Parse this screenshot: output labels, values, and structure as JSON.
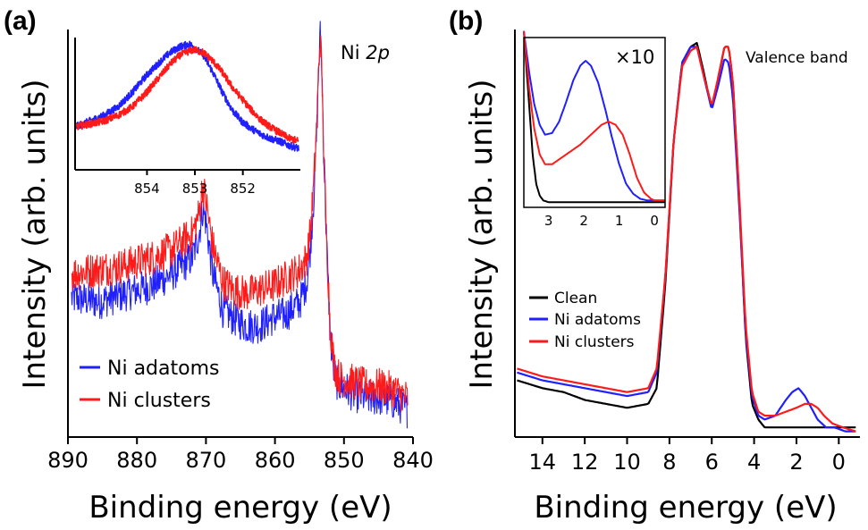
{
  "chart_data": [
    {
      "id": "a",
      "panel_label": "(a)",
      "type": "line",
      "title": "Ni 2p",
      "title_main": "Ni",
      "title_italic": "2p",
      "xlabel": "Binding energy (eV)",
      "ylabel": "Intensity (arb. units)",
      "xlim": [
        890,
        840
      ],
      "xticks": [
        890,
        880,
        870,
        860,
        850,
        840
      ],
      "ylim": [
        0,
        1.0
      ],
      "legend": {
        "position": "bottom-left",
        "entries": [
          "Ni adatoms",
          "Ni clusters"
        ]
      },
      "colors": {
        "Ni adatoms": "#1f1fff",
        "Ni clusters": "#ff1a1a"
      },
      "series": [
        {
          "name": "Ni adatoms",
          "x": [
            890,
            886,
            882,
            878,
            875,
            872,
            871,
            870.5,
            870,
            869,
            867.5,
            866,
            864,
            862,
            860,
            858,
            856,
            855,
            854.5,
            854,
            853.5,
            853.2,
            853,
            852.8,
            852.5,
            852,
            851.5,
            851,
            850.5,
            850,
            848,
            846,
            844,
            842,
            840
          ],
          "y": [
            0.34,
            0.33,
            0.35,
            0.37,
            0.4,
            0.44,
            0.5,
            0.56,
            0.53,
            0.4,
            0.31,
            0.29,
            0.27,
            0.27,
            0.29,
            0.3,
            0.33,
            0.38,
            0.46,
            0.58,
            0.76,
            0.93,
            0.99,
            0.93,
            0.72,
            0.45,
            0.24,
            0.16,
            0.13,
            0.12,
            0.1,
            0.09,
            0.09,
            0.08,
            0.06
          ]
        },
        {
          "name": "Ni clusters",
          "x": [
            890,
            886,
            882,
            878,
            875,
            872,
            871,
            870.5,
            870,
            869,
            867.5,
            866,
            864,
            862,
            860,
            858,
            856,
            855,
            854.5,
            854,
            853.5,
            853.2,
            853,
            852.8,
            852.5,
            852,
            851.5,
            851,
            850.5,
            850,
            848,
            846,
            844,
            842,
            840
          ],
          "y": [
            0.4,
            0.41,
            0.42,
            0.44,
            0.46,
            0.5,
            0.55,
            0.62,
            0.58,
            0.47,
            0.38,
            0.36,
            0.35,
            0.36,
            0.37,
            0.39,
            0.41,
            0.44,
            0.5,
            0.61,
            0.78,
            0.93,
            0.98,
            0.92,
            0.72,
            0.46,
            0.27,
            0.18,
            0.15,
            0.14,
            0.13,
            0.12,
            0.12,
            0.11,
            0.09
          ]
        }
      ],
      "inset": {
        "xlim": [
          855.5,
          850.8
        ],
        "xticks": [
          854,
          853,
          852
        ],
        "ylim": [
          0,
          1.0
        ],
        "series": [
          {
            "name": "Ni adatoms",
            "x": [
              855.5,
              855.2,
              854.9,
              854.6,
              854.3,
              854.0,
              853.7,
              853.5,
              853.3,
              853.1,
              853.0,
              852.8,
              852.6,
              852.4,
              852.2,
              852.0,
              851.8,
              851.6,
              851.4,
              851.2,
              851.0,
              850.8
            ],
            "y": [
              0.3,
              0.34,
              0.38,
              0.44,
              0.54,
              0.66,
              0.76,
              0.82,
              0.86,
              0.88,
              0.86,
              0.8,
              0.68,
              0.54,
              0.42,
              0.34,
              0.29,
              0.25,
              0.22,
              0.2,
              0.17,
              0.15
            ]
          },
          {
            "name": "Ni clusters",
            "x": [
              855.5,
              855.2,
              854.9,
              854.6,
              854.3,
              854.0,
              853.7,
              853.5,
              853.3,
              853.1,
              853.0,
              852.8,
              852.6,
              852.4,
              852.2,
              852.0,
              851.8,
              851.6,
              851.4,
              851.2,
              851.0,
              850.8
            ],
            "y": [
              0.3,
              0.32,
              0.34,
              0.38,
              0.44,
              0.54,
              0.66,
              0.74,
              0.8,
              0.83,
              0.84,
              0.82,
              0.76,
              0.68,
              0.58,
              0.5,
              0.42,
              0.35,
              0.3,
              0.26,
              0.22,
              0.2
            ]
          }
        ]
      }
    },
    {
      "id": "b",
      "panel_label": "(b)",
      "type": "line",
      "title": "Valence band",
      "xlabel": "Binding energy (eV)",
      "ylabel": "Intensity (arb. units)",
      "xlim": [
        15.3,
        -1.0
      ],
      "xticks": [
        14,
        12,
        10,
        8,
        6,
        4,
        2,
        0
      ],
      "ylim": [
        0,
        1.0
      ],
      "legend": {
        "position": "center-left",
        "entries": [
          "Clean",
          "Ni adatoms",
          "Ni clusters"
        ]
      },
      "colors": {
        "Clean": "#000000",
        "Ni adatoms": "#1f1fff",
        "Ni clusters": "#ff1a1a"
      },
      "series": [
        {
          "name": "Clean",
          "x": [
            15.2,
            14,
            13,
            12,
            11,
            10,
            9,
            8.6,
            8.2,
            7.8,
            7.4,
            7.0,
            6.7,
            6.4,
            6.0,
            5.7,
            5.4,
            5.2,
            5.0,
            4.7,
            4.4,
            4.1,
            3.8,
            3.5,
            3,
            2,
            1,
            0,
            -0.8
          ],
          "y": [
            0.14,
            0.12,
            0.11,
            0.09,
            0.08,
            0.07,
            0.08,
            0.12,
            0.38,
            0.75,
            0.95,
            0.99,
            1.0,
            0.93,
            0.83,
            0.91,
            0.99,
            0.99,
            0.9,
            0.6,
            0.25,
            0.08,
            0.04,
            0.02,
            0.02,
            0.02,
            0.02,
            0.02,
            0.02
          ]
        },
        {
          "name": "Ni adatoms",
          "x": [
            15.2,
            14,
            13,
            12,
            11,
            10,
            9,
            8.6,
            8.2,
            7.8,
            7.4,
            7.0,
            6.7,
            6.4,
            6.0,
            5.7,
            5.4,
            5.2,
            5.0,
            4.7,
            4.4,
            4.1,
            3.8,
            3.5,
            3,
            2.5,
            2.2,
            1.9,
            1.6,
            1.3,
            1.0,
            0.6,
            0.2,
            -0.3,
            -0.8
          ],
          "y": [
            0.16,
            0.14,
            0.13,
            0.12,
            0.11,
            0.1,
            0.11,
            0.16,
            0.4,
            0.75,
            0.95,
            0.99,
            0.99,
            0.92,
            0.83,
            0.89,
            0.96,
            0.95,
            0.86,
            0.58,
            0.26,
            0.1,
            0.05,
            0.04,
            0.05,
            0.09,
            0.11,
            0.12,
            0.1,
            0.07,
            0.04,
            0.02,
            0.02,
            0.01,
            0.01
          ]
        },
        {
          "name": "Ni clusters",
          "x": [
            15.2,
            14,
            13,
            12,
            11,
            10,
            9,
            8.6,
            8.2,
            7.8,
            7.4,
            7.0,
            6.7,
            6.4,
            6.0,
            5.7,
            5.4,
            5.2,
            5.0,
            4.7,
            4.4,
            4.1,
            3.8,
            3.5,
            3,
            2.5,
            2.0,
            1.6,
            1.3,
            1.0,
            0.7,
            0.3,
            -0.2,
            -0.8
          ],
          "y": [
            0.17,
            0.15,
            0.14,
            0.13,
            0.12,
            0.11,
            0.12,
            0.17,
            0.4,
            0.75,
            0.94,
            0.98,
            0.99,
            0.92,
            0.84,
            0.91,
            0.99,
            0.99,
            0.9,
            0.61,
            0.28,
            0.11,
            0.06,
            0.05,
            0.05,
            0.06,
            0.07,
            0.08,
            0.08,
            0.07,
            0.05,
            0.03,
            0.02,
            0.01
          ]
        }
      ],
      "inset": {
        "annotation": "×10",
        "xlim": [
          3.7,
          -0.3
        ],
        "xticks": [
          3,
          2,
          1,
          0
        ],
        "ylim": [
          0,
          1.0
        ],
        "series": [
          {
            "name": "Clean",
            "x": [
              3.7,
              3.55,
              3.45,
              3.35,
              3.25,
              3.15,
              3.0,
              2.5,
              2.0,
              1.5,
              1.0,
              0.5,
              0,
              -0.3
            ],
            "y": [
              1.05,
              0.6,
              0.3,
              0.12,
              0.05,
              0.02,
              0.01,
              0.01,
              0.01,
              0.01,
              0.01,
              0.01,
              0.01,
              0.01
            ]
          },
          {
            "name": "Ni adatoms",
            "x": [
              3.7,
              3.55,
              3.4,
              3.25,
              3.1,
              2.9,
              2.7,
              2.5,
              2.3,
              2.1,
              1.95,
              1.8,
              1.6,
              1.4,
              1.2,
              1.0,
              0.8,
              0.6,
              0.4,
              0.2,
              0,
              -0.3
            ],
            "y": [
              1.05,
              0.8,
              0.6,
              0.48,
              0.42,
              0.43,
              0.5,
              0.62,
              0.75,
              0.84,
              0.87,
              0.84,
              0.74,
              0.58,
              0.4,
              0.24,
              0.12,
              0.06,
              0.03,
              0.02,
              0.02,
              0.02
            ]
          },
          {
            "name": "Ni clusters",
            "x": [
              3.7,
              3.55,
              3.4,
              3.25,
              3.1,
              2.9,
              2.7,
              2.5,
              2.3,
              2.1,
              1.9,
              1.7,
              1.5,
              1.3,
              1.1,
              0.9,
              0.7,
              0.5,
              0.3,
              0.1,
              0,
              -0.3
            ],
            "y": [
              1.05,
              0.7,
              0.45,
              0.3,
              0.24,
              0.24,
              0.27,
              0.3,
              0.33,
              0.36,
              0.4,
              0.44,
              0.48,
              0.5,
              0.48,
              0.42,
              0.3,
              0.16,
              0.07,
              0.03,
              0.02,
              0.02
            ]
          }
        ]
      }
    }
  ]
}
